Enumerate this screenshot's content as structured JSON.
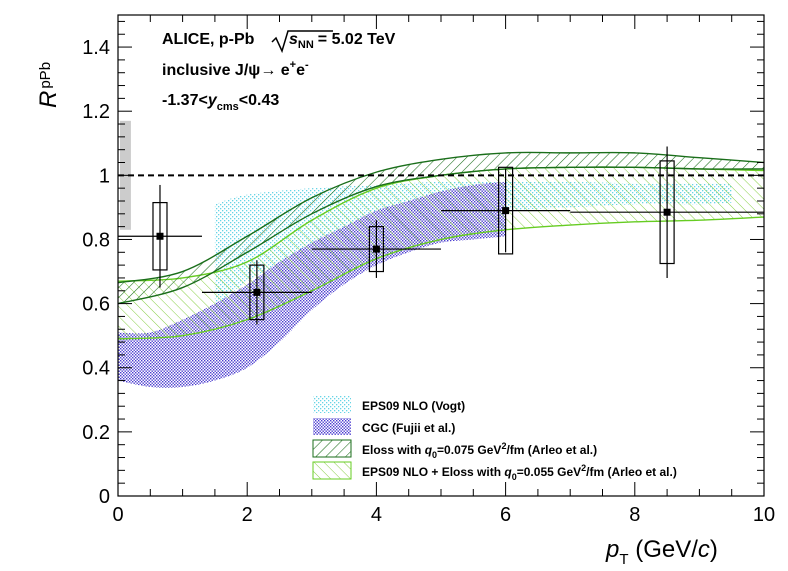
{
  "chart_data": {
    "type": "scatter",
    "title": "",
    "xlabel": "p_T (GeV/c)",
    "xlabel_parts": {
      "main": "p",
      "sub": "T",
      "units": " (GeV/",
      "c": "c",
      "close": ")"
    },
    "ylabel": "R_pPb",
    "ylabel_parts": {
      "main": "R",
      "sub": "pPb"
    },
    "xlim": [
      0,
      10
    ],
    "ylim": [
      0,
      1.5
    ],
    "xticks": [
      0,
      2,
      4,
      6,
      8,
      10
    ],
    "xtick_labels": [
      "0",
      "2",
      "4",
      "6",
      "8",
      "10"
    ],
    "yticks": [
      0,
      0.2,
      0.4,
      0.6,
      0.8,
      1,
      1.2,
      1.4
    ],
    "ytick_labels": [
      "0",
      "0.2",
      "0.4",
      "0.6",
      "0.8",
      "1",
      "1.2",
      "1.4"
    ],
    "reference_line": {
      "y": 1,
      "style": "dashed"
    },
    "global_uncertainty_band": {
      "x": [
        0,
        0.2
      ],
      "y": [
        0.83,
        1.17
      ],
      "color": "#cccccc"
    },
    "annotations": {
      "line1": "ALICE, p-Pb",
      "sqrt_label": "s",
      "sqrt_sub": "NN",
      "energy": "= 5.02 TeV",
      "line2_pre": "inclusive J/ψ→ e",
      "line2_sup1": "+",
      "line2_mid": "e",
      "line2_sup2": "-",
      "line3_pre": "-1.37<",
      "line3_var": "y",
      "line3_sub": "cms",
      "line3_post": "<0.43"
    },
    "series": [
      {
        "name": "ALICE data",
        "type": "points",
        "color": "#000000",
        "points": [
          {
            "x": 0.65,
            "xlo": 0.0,
            "xhi": 1.3,
            "y": 0.81,
            "stat": 0.16,
            "sys": 0.105
          },
          {
            "x": 2.15,
            "xlo": 1.3,
            "xhi": 3.0,
            "y": 0.635,
            "stat": 0.1,
            "sys": 0.085
          },
          {
            "x": 4.0,
            "xlo": 3.0,
            "xhi": 5.0,
            "y": 0.77,
            "stat": 0.09,
            "sys": 0.07
          },
          {
            "x": 6.0,
            "xlo": 5.0,
            "xhi": 7.0,
            "y": 0.89,
            "stat": 0.13,
            "sys": 0.135
          },
          {
            "x": 8.5,
            "xlo": 7.0,
            "xhi": 10.0,
            "y": 0.885,
            "stat": 0.205,
            "sys": 0.16
          }
        ]
      },
      {
        "name": "EPS09 NLO (Vogt)",
        "type": "band",
        "color": "#66d4e6",
        "x": [
          1.5,
          2.0,
          3.0,
          4.0,
          5.0,
          6.0,
          7.0,
          8.0,
          9.0,
          9.5
        ],
        "lower": [
          0.58,
          0.67,
          0.77,
          0.83,
          0.87,
          0.89,
          0.9,
          0.91,
          0.91,
          0.915
        ],
        "upper": [
          0.91,
          0.94,
          0.96,
          0.97,
          0.98,
          0.98,
          0.98,
          0.975,
          0.975,
          0.975
        ]
      },
      {
        "name": "CGC (Fujii et al.)",
        "type": "band",
        "color": "#4a3ccf",
        "x": [
          0,
          0.5,
          1.0,
          1.5,
          2.0,
          2.5,
          3.0,
          3.5,
          4.0,
          4.5,
          5.0,
          5.5,
          6.0
        ],
        "lower": [
          0.36,
          0.34,
          0.34,
          0.36,
          0.4,
          0.48,
          0.58,
          0.66,
          0.72,
          0.76,
          0.79,
          0.8,
          0.81
        ],
        "upper": [
          0.51,
          0.51,
          0.55,
          0.6,
          0.66,
          0.73,
          0.79,
          0.84,
          0.89,
          0.92,
          0.95,
          0.97,
          0.98
        ]
      },
      {
        "name": "Eloss with q0=0.075 GeV2/fm (Arleo et al.)",
        "type": "band",
        "color": "#1a6e1a",
        "x": [
          0,
          1,
          2,
          3,
          4,
          5,
          6,
          7,
          8,
          9,
          10
        ],
        "lower": [
          0.6,
          0.65,
          0.76,
          0.88,
          0.965,
          1.0,
          1.02,
          1.025,
          1.025,
          1.02,
          1.02
        ],
        "upper": [
          0.665,
          0.7,
          0.81,
          0.93,
          1.01,
          1.05,
          1.07,
          1.07,
          1.07,
          1.055,
          1.04
        ]
      },
      {
        "name": "EPS09 NLO + Eloss with q0=0.055 GeV2/fm (Arleo et al.)",
        "type": "band",
        "color": "#66cc22",
        "x": [
          0,
          1,
          2,
          3,
          4,
          5,
          6,
          7,
          8,
          9,
          10
        ],
        "lower": [
          0.49,
          0.5,
          0.55,
          0.64,
          0.74,
          0.8,
          0.83,
          0.845,
          0.855,
          0.86,
          0.87
        ],
        "upper": [
          0.67,
          0.68,
          0.73,
          0.86,
          0.96,
          1.0,
          1.02,
          1.025,
          1.025,
          1.02,
          1.015
        ]
      }
    ],
    "legend": {
      "position": "bottom-right",
      "entries": [
        {
          "label": "EPS09 NLO (Vogt)"
        },
        {
          "label": "CGC (Fujii et al.)"
        },
        {
          "pre": "Eloss with  ",
          "q": "q",
          "qsub": "0",
          "mid": "=0.075 GeV",
          "sup": "2",
          "post": "/fm (Arleo et al.)"
        },
        {
          "pre": "EPS09 NLO + Eloss with  ",
          "q": "q",
          "qsub": "0",
          "mid": "=0.055 GeV",
          "sup": "2",
          "post": "/fm (Arleo et al.)"
        }
      ]
    }
  }
}
